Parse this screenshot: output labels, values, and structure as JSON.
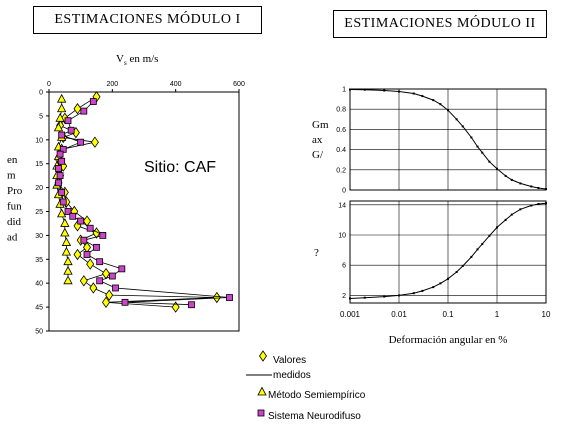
{
  "titles": {
    "left": "ESTIMACIONES MÓDULO I",
    "right": "ESTIMACIONES MÓDULO II"
  },
  "legend": {
    "items": [
      {
        "label": "Valores medidos",
        "line1": "Valores",
        "line2": "medidos",
        "marker": "diamond",
        "color": "#ffff00"
      },
      {
        "label": "Método Semiempírico",
        "marker": "triangle",
        "color": "#ffff00"
      },
      {
        "label": "Sistema Neurodifuso",
        "marker": "square",
        "color": "#cc44cc"
      }
    ]
  },
  "chart_data": [
    {
      "type": "line",
      "title": "Vs en m/s",
      "title_main": "V",
      "title_sub": "s",
      "title_rest": " en m/s",
      "annotation": "Sitio: CAF",
      "ylabel_lines": [
        "en",
        "m",
        "Pro",
        "fun",
        "did",
        "ad"
      ],
      "xlim": [
        0,
        600
      ],
      "ylim": [
        0,
        50
      ],
      "y_inverted": true,
      "x_ticks": [
        "0",
        "200",
        "400",
        "600"
      ],
      "x_tick_values": [
        0,
        200,
        400,
        600
      ],
      "y_ticks": [
        "0",
        "5",
        "10",
        "15",
        "20",
        "25",
        "30",
        "35",
        "40",
        "45",
        "50"
      ],
      "y_tick_values": [
        0,
        5,
        10,
        15,
        20,
        25,
        30,
        35,
        40,
        45,
        50
      ],
      "grid": false,
      "series": [
        {
          "name": "Valores medidos",
          "marker": "diamond",
          "color": "#ffff00",
          "points": [
            [
              150,
              1
            ],
            [
              90,
              3.5
            ],
            [
              50,
              5.5
            ],
            [
              35,
              7
            ],
            [
              85,
              8.5
            ],
            [
              45,
              9.5
            ],
            [
              145,
              10.5
            ],
            [
              40,
              12
            ],
            [
              30,
              14
            ],
            [
              45,
              15.5
            ],
            [
              35,
              17.5
            ],
            [
              30,
              19
            ],
            [
              50,
              21
            ],
            [
              55,
              23
            ],
            [
              80,
              25
            ],
            [
              120,
              27
            ],
            [
              90,
              28
            ],
            [
              150,
              29.5
            ],
            [
              100,
              31
            ],
            [
              120,
              32.5
            ],
            [
              90,
              34
            ],
            [
              130,
              36
            ],
            [
              180,
              38
            ],
            [
              110,
              39.5
            ],
            [
              140,
              41
            ],
            [
              190,
              42.5
            ],
            [
              530,
              43
            ],
            [
              180,
              44
            ],
            [
              400,
              45
            ]
          ]
        },
        {
          "name": "Método Semiempírico",
          "marker": "triangle",
          "color": "#ffff00",
          "points": [
            [
              40,
              1.5
            ],
            [
              40,
              3.5
            ],
            [
              35,
              5.5
            ],
            [
              30,
              7.5
            ],
            [
              40,
              9.5
            ],
            [
              30,
              11.5
            ],
            [
              30,
              13.5
            ],
            [
              25,
              15.5
            ],
            [
              25,
              17.5
            ],
            [
              25,
              19.5
            ],
            [
              30,
              21.5
            ],
            [
              35,
              23.5
            ],
            [
              40,
              25.5
            ],
            [
              50,
              27.5
            ],
            [
              50,
              29.5
            ],
            [
              55,
              31.5
            ],
            [
              55,
              33.5
            ],
            [
              60,
              35.5
            ],
            [
              60,
              37.5
            ],
            [
              60,
              39.5
            ]
          ]
        },
        {
          "name": "Sistema Neurodifuso",
          "marker": "square",
          "color": "#cc44cc",
          "points": [
            [
              140,
              2
            ],
            [
              110,
              4
            ],
            [
              60,
              6
            ],
            [
              70,
              8
            ],
            [
              40,
              9
            ],
            [
              100,
              10.5
            ],
            [
              45,
              12
            ],
            [
              35,
              13
            ],
            [
              40,
              14.5
            ],
            [
              30,
              16
            ],
            [
              35,
              17.5
            ],
            [
              30,
              19
            ],
            [
              40,
              21
            ],
            [
              45,
              23
            ],
            [
              60,
              25
            ],
            [
              75,
              26
            ],
            [
              100,
              27
            ],
            [
              130,
              28.5
            ],
            [
              170,
              30
            ],
            [
              110,
              31
            ],
            [
              150,
              32.5
            ],
            [
              120,
              34
            ],
            [
              160,
              35.5
            ],
            [
              230,
              37
            ],
            [
              200,
              38.5
            ],
            [
              160,
              39.5
            ],
            [
              210,
              41
            ],
            [
              570,
              43
            ],
            [
              240,
              44
            ],
            [
              450,
              44.5
            ]
          ]
        }
      ]
    },
    {
      "type": "line",
      "title": "",
      "ylabel_lines": [
        "Gm",
        "ax",
        "G/"
      ],
      "xscale": "log",
      "xlim": [
        0.001,
        10
      ],
      "ylim": [
        0,
        1
      ],
      "y_ticks": [
        "0",
        "0.2",
        "0.4",
        "0.6",
        "0.8",
        "1"
      ],
      "y_tick_values": [
        0,
        0.2,
        0.4,
        0.6,
        0.8,
        1
      ],
      "grid": true,
      "series": [
        {
          "name": "",
          "points": [
            [
              0.001,
              0.995
            ],
            [
              0.002,
              0.993
            ],
            [
              0.005,
              0.985
            ],
            [
              0.01,
              0.975
            ],
            [
              0.02,
              0.955
            ],
            [
              0.03,
              0.93
            ],
            [
              0.05,
              0.89
            ],
            [
              0.07,
              0.85
            ],
            [
              0.1,
              0.79
            ],
            [
              0.15,
              0.7
            ],
            [
              0.2,
              0.63
            ],
            [
              0.3,
              0.52
            ],
            [
              0.4,
              0.43
            ],
            [
              0.5,
              0.37
            ],
            [
              0.7,
              0.28
            ],
            [
              1,
              0.21
            ],
            [
              1.5,
              0.14
            ],
            [
              2,
              0.1
            ],
            [
              3,
              0.065
            ],
            [
              5,
              0.035
            ],
            [
              7,
              0.02
            ],
            [
              10,
              0.01
            ]
          ]
        }
      ]
    },
    {
      "type": "line",
      "title": "",
      "ylabel_lines": [
        "?"
      ],
      "xlabel": "Deformación  angular en %",
      "xscale": "log",
      "xlim": [
        0.001,
        10
      ],
      "ylim": [
        1,
        14.5
      ],
      "x_ticks": [
        "0.001",
        "0.01",
        "0.1",
        "1",
        "10"
      ],
      "x_tick_values": [
        0.001,
        0.01,
        0.1,
        1,
        10
      ],
      "y_ticks": [
        "2",
        "6",
        "10",
        "14"
      ],
      "y_tick_values": [
        2,
        6,
        10,
        14
      ],
      "grid": true,
      "series": [
        {
          "name": "",
          "points": [
            [
              0.001,
              1.6
            ],
            [
              0.002,
              1.7
            ],
            [
              0.005,
              1.85
            ],
            [
              0.01,
              2.0
            ],
            [
              0.02,
              2.3
            ],
            [
              0.03,
              2.6
            ],
            [
              0.05,
              3.1
            ],
            [
              0.07,
              3.6
            ],
            [
              0.1,
              4.2
            ],
            [
              0.15,
              5.1
            ],
            [
              0.2,
              5.9
            ],
            [
              0.3,
              7.1
            ],
            [
              0.4,
              8.1
            ],
            [
              0.5,
              8.8
            ],
            [
              0.7,
              9.9
            ],
            [
              1,
              11.0
            ],
            [
              1.5,
              12.0
            ],
            [
              2,
              12.7
            ],
            [
              3,
              13.4
            ],
            [
              5,
              13.9
            ],
            [
              7,
              14.1
            ],
            [
              10,
              14.2
            ]
          ]
        }
      ]
    }
  ]
}
